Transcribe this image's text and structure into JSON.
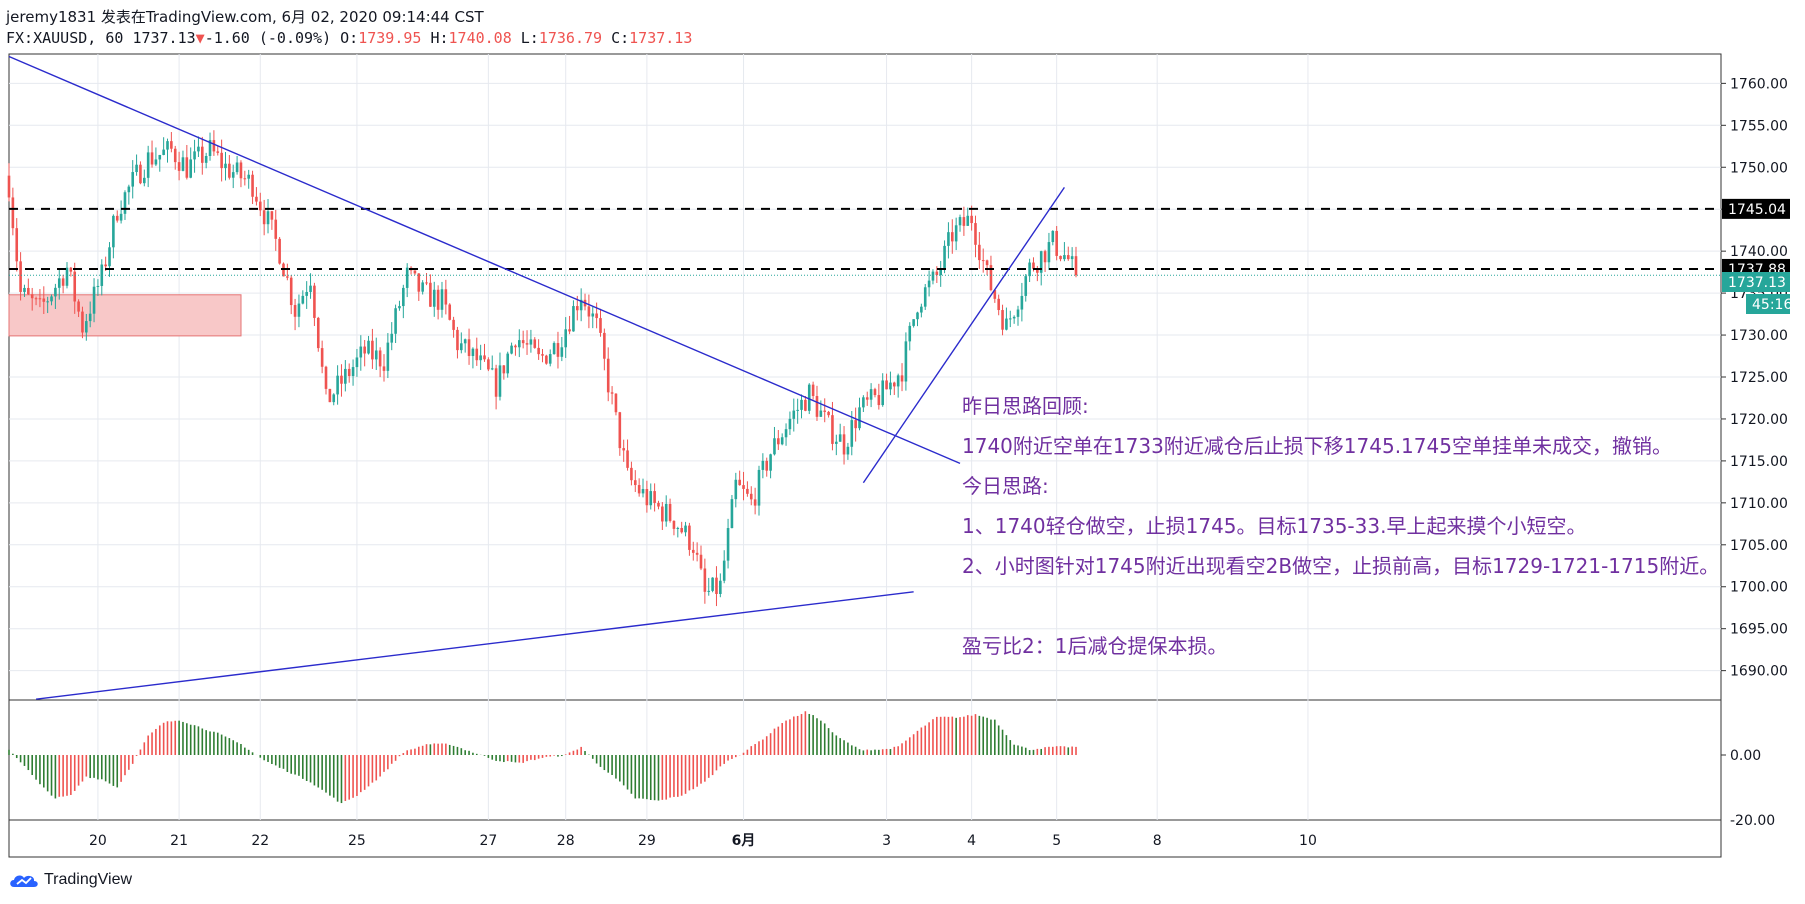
{
  "header": {
    "line1": "jeremy1831 发表在TradingView.com, 6月 02, 2020 09:14:44 CST",
    "symbol": "FX:XAUUSD, 60",
    "last": "1737.13",
    "change": "-1.60 (-0.09%)",
    "open_label": "O:",
    "open": "1739.95",
    "high_label": "H:",
    "high": "1740.08",
    "low_label": "L:",
    "low": "1736.79",
    "close_label": "C:",
    "close": "1737.13"
  },
  "brand": {
    "name": "TradingView",
    "icon": "tradingview-cloud-icon"
  },
  "annotations": [
    "昨日思路回顾:",
    "1740附近空单在1733附近减仓后止损下移1745.1745空单挂单未成交，撤销。",
    "今日思路:",
    "1、1740轻仓做空，止损1745。目标1735-33.早上起来摸个小短空。",
    "2、小时图针对1745附近出现看空2B做空，止损前高，目标1729-1721-1715附近。",
    "盈亏比2：1后减仓提保本损。"
  ],
  "chart_data": {
    "type": "candlestick",
    "symbol": "FX:XAUUSD",
    "interval": "60",
    "y_ticks": [
      "1760.00",
      "1755.00",
      "1750.00",
      "1745.00",
      "1740.00",
      "1735.00",
      "1730.00",
      "1725.00",
      "1720.00",
      "1715.00",
      "1710.00",
      "1705.00",
      "1700.00",
      "1695.00",
      "1690.00"
    ],
    "ylim": [
      1686.5,
      1763.5
    ],
    "x_ticks": [
      "20",
      "21",
      "22",
      "25",
      "27",
      "28",
      "29",
      "6月",
      "3",
      "4",
      "5",
      "8",
      "10"
    ],
    "price_labels": [
      {
        "text": "1745.04",
        "value": 1745.04,
        "style": "black"
      },
      {
        "text": "1737.88",
        "value": 1737.88,
        "style": "black"
      },
      {
        "text": "1737.13",
        "value": 1737.13,
        "style": "teal"
      },
      {
        "text": "45:16",
        "value": null,
        "style": "teal"
      }
    ],
    "horizontal_lines": [
      1745.04,
      1737.88
    ],
    "last_price_line": 1737.13,
    "zone": {
      "top": 1734.8,
      "bottom": 1729.9
    },
    "trend_lines": [
      {
        "from": [
          0,
          1763.2
        ],
        "to": [
          246,
          1714.7
        ]
      },
      {
        "from": [
          7,
          1686.6
        ],
        "to": [
          234,
          1699.4
        ]
      },
      {
        "from": [
          221,
          1712.4
        ],
        "to": [
          273,
          1747.6
        ]
      }
    ],
    "closes_keypoints": [
      [
        0,
        1748
      ],
      [
        3,
        1735
      ],
      [
        8,
        1733
      ],
      [
        15,
        1738
      ],
      [
        19,
        1731
      ],
      [
        24,
        1737
      ],
      [
        28,
        1745
      ],
      [
        33,
        1749
      ],
      [
        36,
        1751
      ],
      [
        42,
        1752
      ],
      [
        46,
        1750
      ],
      [
        52,
        1752
      ],
      [
        56,
        1750
      ],
      [
        63,
        1748
      ],
      [
        70,
        1740
      ],
      [
        74,
        1733
      ],
      [
        78,
        1737
      ],
      [
        82,
        1722
      ],
      [
        87,
        1725
      ],
      [
        92,
        1728
      ],
      [
        97,
        1727
      ],
      [
        103,
        1737
      ],
      [
        107,
        1735
      ],
      [
        112,
        1734
      ],
      [
        116,
        1729
      ],
      [
        121,
        1727
      ],
      [
        126,
        1724
      ],
      [
        131,
        1730
      ],
      [
        137,
        1727
      ],
      [
        142,
        1729
      ],
      [
        148,
        1735
      ],
      [
        152,
        1731
      ],
      [
        156,
        1722
      ],
      [
        160,
        1713
      ],
      [
        166,
        1710
      ],
      [
        172,
        1708
      ],
      [
        177,
        1705
      ],
      [
        180,
        1699
      ],
      [
        184,
        1700
      ],
      [
        188,
        1712
      ],
      [
        192,
        1710
      ],
      [
        197,
        1716
      ],
      [
        202,
        1720
      ],
      [
        207,
        1723
      ],
      [
        212,
        1719
      ],
      [
        216,
        1717
      ],
      [
        220,
        1721
      ],
      [
        226,
        1723
      ],
      [
        231,
        1726
      ],
      [
        235,
        1734
      ],
      [
        240,
        1737
      ],
      [
        244,
        1742
      ],
      [
        249,
        1744
      ],
      [
        253,
        1737
      ],
      [
        258,
        1731
      ],
      [
        264,
        1738
      ],
      [
        270,
        1741
      ],
      [
        274,
        1739
      ],
      [
        276,
        1737.13
      ]
    ],
    "oscillator": {
      "zero_label": "0.00",
      "low_label": "-20.00",
      "keypoints": [
        [
          0,
          2
        ],
        [
          4,
          -4
        ],
        [
          8,
          -11
        ],
        [
          12,
          -16
        ],
        [
          16,
          -15
        ],
        [
          20,
          -8
        ],
        [
          24,
          -9
        ],
        [
          28,
          -12
        ],
        [
          32,
          -3
        ],
        [
          36,
          7
        ],
        [
          40,
          12
        ],
        [
          44,
          13
        ],
        [
          48,
          11
        ],
        [
          54,
          8
        ],
        [
          60,
          4
        ],
        [
          66,
          -2
        ],
        [
          72,
          -6
        ],
        [
          78,
          -10
        ],
        [
          82,
          -14
        ],
        [
          86,
          -18
        ],
        [
          90,
          -15
        ],
        [
          96,
          -8
        ],
        [
          102,
          1
        ],
        [
          108,
          4
        ],
        [
          114,
          4
        ],
        [
          120,
          1
        ],
        [
          126,
          -2
        ],
        [
          132,
          -3
        ],
        [
          138,
          -1
        ],
        [
          144,
          0
        ],
        [
          148,
          3
        ],
        [
          152,
          -3
        ],
        [
          158,
          -10
        ],
        [
          162,
          -16
        ],
        [
          168,
          -17
        ],
        [
          174,
          -15
        ],
        [
          180,
          -10
        ],
        [
          185,
          -3
        ],
        [
          190,
          1
        ],
        [
          196,
          7
        ],
        [
          200,
          12
        ],
        [
          206,
          16
        ],
        [
          210,
          13
        ],
        [
          214,
          7
        ],
        [
          220,
          2
        ],
        [
          226,
          2
        ],
        [
          230,
          3
        ],
        [
          236,
          10
        ],
        [
          240,
          14
        ],
        [
          246,
          14
        ],
        [
          250,
          15
        ],
        [
          255,
          13
        ],
        [
          260,
          4
        ],
        [
          264,
          2
        ],
        [
          270,
          3
        ],
        [
          276,
          3
        ]
      ]
    }
  }
}
